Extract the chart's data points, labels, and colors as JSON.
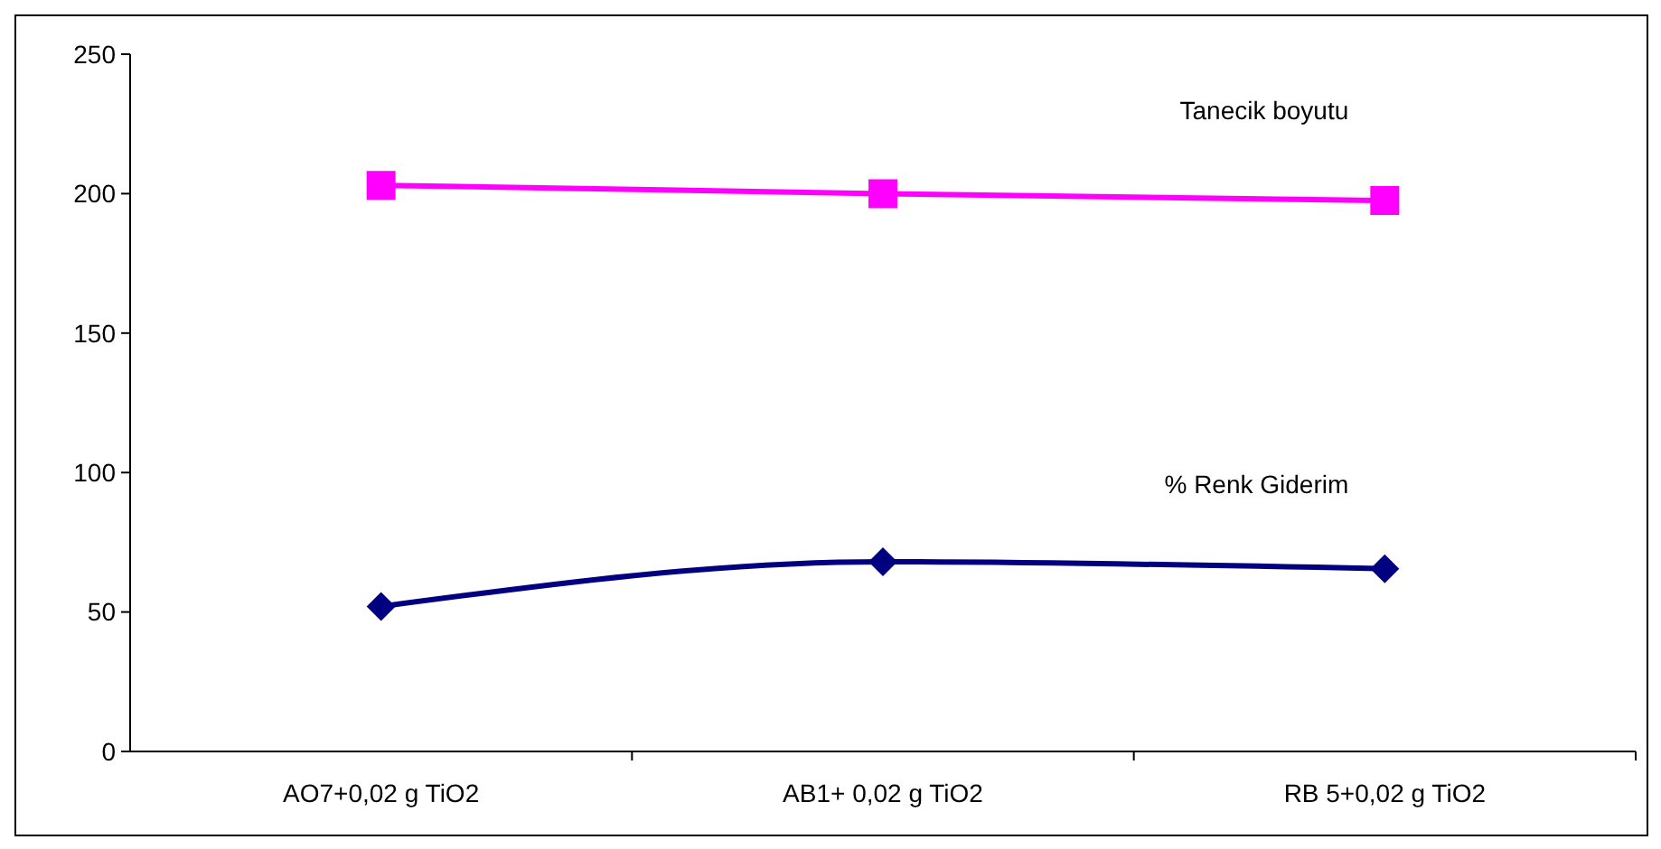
{
  "chart_data": {
    "type": "line",
    "categories": [
      "AO7+0,02 g TiO2",
      "AB1+ 0,02 g TiO2",
      "RB 5+0,02 g TiO2"
    ],
    "series": [
      {
        "name": "Tanecik boyutu",
        "color": "#ff00ff",
        "marker": "square",
        "values": [
          203,
          200,
          197.5
        ]
      },
      {
        "name": "% Renk Giderim",
        "color": "#000080",
        "marker": "diamond",
        "values": [
          52,
          68,
          65.5
        ]
      }
    ],
    "ylim": [
      0,
      250
    ],
    "yticks": [
      0,
      50,
      100,
      150,
      200,
      250
    ]
  }
}
